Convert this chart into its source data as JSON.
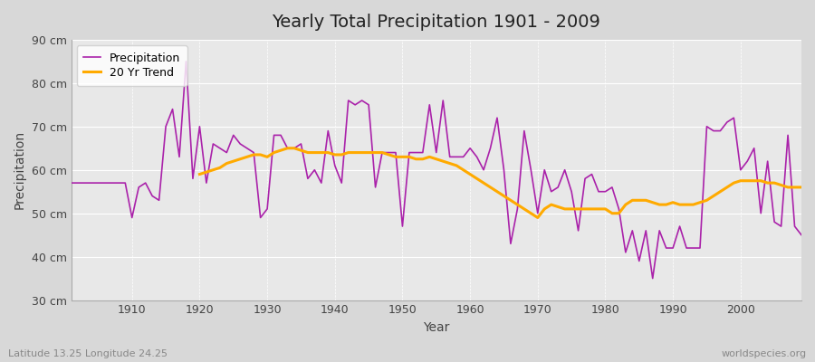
{
  "title": "Yearly Total Precipitation 1901 - 2009",
  "xlabel": "Year",
  "ylabel": "Precipitation",
  "footnote_left": "Latitude 13.25 Longitude 24.25",
  "footnote_right": "worldspecies.org",
  "ylim": [
    30,
    90
  ],
  "ytick_labels": [
    "30 cm",
    "40 cm",
    "50 cm",
    "60 cm",
    "70 cm",
    "80 cm",
    "90 cm"
  ],
  "ytick_values": [
    30,
    40,
    50,
    60,
    70,
    80,
    90
  ],
  "fig_bg_color": "#d8d8d8",
  "plot_bg_color": "#e8e8e8",
  "grid_color": "#ffffff",
  "line_color_precip": "#aa22aa",
  "line_color_trend": "#ffaa00",
  "legend_precip": "Precipitation",
  "legend_trend": "20 Yr Trend",
  "years": [
    1901,
    1902,
    1903,
    1904,
    1905,
    1906,
    1907,
    1908,
    1909,
    1910,
    1911,
    1912,
    1913,
    1914,
    1915,
    1916,
    1917,
    1918,
    1919,
    1920,
    1921,
    1922,
    1923,
    1924,
    1925,
    1926,
    1927,
    1928,
    1929,
    1930,
    1931,
    1932,
    1933,
    1934,
    1935,
    1936,
    1937,
    1938,
    1939,
    1940,
    1941,
    1942,
    1943,
    1944,
    1945,
    1946,
    1947,
    1948,
    1949,
    1950,
    1951,
    1952,
    1953,
    1954,
    1955,
    1956,
    1957,
    1958,
    1959,
    1960,
    1961,
    1962,
    1963,
    1964,
    1965,
    1966,
    1967,
    1968,
    1969,
    1970,
    1971,
    1972,
    1973,
    1974,
    1975,
    1976,
    1977,
    1978,
    1979,
    1980,
    1981,
    1982,
    1983,
    1984,
    1985,
    1986,
    1987,
    1988,
    1989,
    1990,
    1991,
    1992,
    1993,
    1994,
    1995,
    1996,
    1997,
    1998,
    1999,
    2000,
    2001,
    2002,
    2003,
    2004,
    2005,
    2006,
    2007,
    2008,
    2009
  ],
  "precip": [
    57,
    57,
    57,
    57,
    57,
    57,
    57,
    57,
    57,
    49,
    56,
    57,
    54,
    53,
    70,
    74,
    63,
    85,
    58,
    70,
    57,
    66,
    65,
    64,
    68,
    66,
    65,
    64,
    49,
    51,
    68,
    68,
    65,
    65,
    66,
    58,
    60,
    57,
    69,
    61,
    57,
    76,
    75,
    76,
    75,
    56,
    64,
    64,
    64,
    47,
    64,
    64,
    64,
    75,
    64,
    76,
    63,
    63,
    63,
    65,
    63,
    60,
    65,
    72,
    60,
    43,
    51,
    69,
    60,
    50,
    60,
    55,
    56,
    60,
    55,
    46,
    58,
    59,
    55,
    55,
    56,
    51,
    41,
    46,
    39,
    46,
    35,
    46,
    42,
    42,
    47,
    42,
    42,
    42,
    70,
    69,
    69,
    71,
    72,
    60,
    62,
    65,
    50,
    62,
    48,
    47,
    68,
    47,
    45
  ],
  "trend": [
    null,
    null,
    null,
    null,
    null,
    null,
    null,
    null,
    null,
    null,
    null,
    null,
    null,
    null,
    null,
    null,
    null,
    null,
    null,
    59,
    59.5,
    60,
    60.5,
    61.5,
    62,
    62.5,
    63,
    63.5,
    63.5,
    63,
    64,
    64.5,
    65,
    65,
    64.5,
    64,
    64,
    64,
    64,
    63.5,
    63.5,
    64,
    64,
    64,
    64,
    64,
    64,
    63.5,
    63,
    63,
    63,
    62.5,
    62.5,
    63,
    62.5,
    62,
    61.5,
    61,
    60,
    59,
    58,
    57,
    56,
    55,
    54,
    53,
    52,
    51,
    50,
    49,
    51,
    52,
    51.5,
    51,
    51,
    51,
    51,
    51,
    51,
    51,
    50,
    50,
    52,
    53,
    53,
    53,
    52.5,
    52,
    52,
    52.5,
    52,
    52,
    52,
    52.5,
    53,
    54,
    55,
    56,
    57,
    57.5,
    57.5,
    57.5,
    57.5,
    57,
    57,
    56.5,
    56,
    56,
    56
  ]
}
